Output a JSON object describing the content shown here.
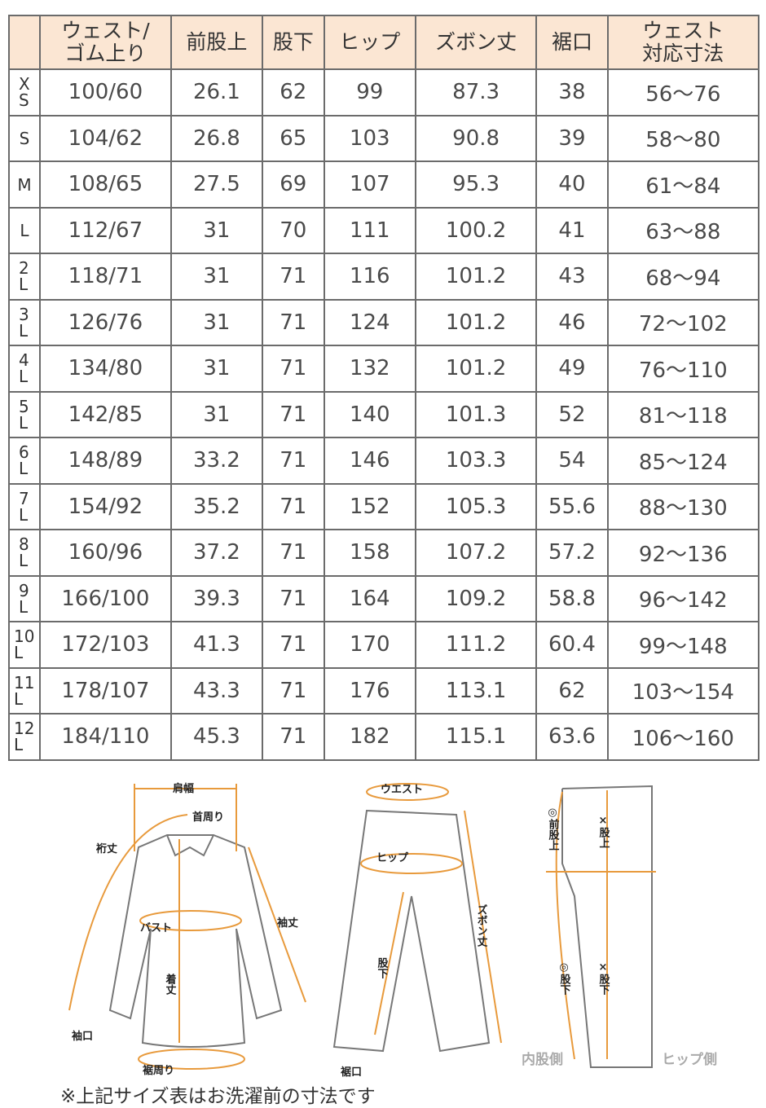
{
  "table": {
    "headers": [
      "",
      "ウェスト/\nゴム上り",
      "前股上",
      "股下",
      "ヒップ",
      "ズボン丈",
      "裾口",
      "ウェスト\n対応寸法"
    ],
    "rows": [
      [
        "XS",
        "100/60",
        "26.1",
        "62",
        "99",
        "87.3",
        "38",
        "56～76"
      ],
      [
        "S",
        "104/62",
        "26.8",
        "65",
        "103",
        "90.8",
        "39",
        "58～80"
      ],
      [
        "M",
        "108/65",
        "27.5",
        "69",
        "107",
        "95.3",
        "40",
        "61～84"
      ],
      [
        "L",
        "112/67",
        "31",
        "70",
        "111",
        "100.2",
        "41",
        "63～88"
      ],
      [
        "2L",
        "118/71",
        "31",
        "71",
        "116",
        "101.2",
        "43",
        "68～94"
      ],
      [
        "3L",
        "126/76",
        "31",
        "71",
        "124",
        "101.2",
        "46",
        "72～102"
      ],
      [
        "4L",
        "134/80",
        "31",
        "71",
        "132",
        "101.2",
        "49",
        "76～110"
      ],
      [
        "5L",
        "142/85",
        "31",
        "71",
        "140",
        "101.3",
        "52",
        "81～118"
      ],
      [
        "6L",
        "148/89",
        "33.2",
        "71",
        "146",
        "103.3",
        "54",
        "85～124"
      ],
      [
        "7L",
        "154/92",
        "35.2",
        "71",
        "152",
        "105.3",
        "55.6",
        "88～130"
      ],
      [
        "8L",
        "160/96",
        "37.2",
        "71",
        "158",
        "107.2",
        "57.2",
        "92～136"
      ],
      [
        "9L",
        "166/100",
        "39.3",
        "71",
        "164",
        "109.2",
        "58.8",
        "96～142"
      ],
      [
        "10L",
        "172/103",
        "41.3",
        "71",
        "170",
        "111.2",
        "60.4",
        "99～148"
      ],
      [
        "11L",
        "178/107",
        "43.3",
        "71",
        "176",
        "113.1",
        "62",
        "103～154"
      ],
      [
        "12L",
        "184/110",
        "45.3",
        "71",
        "182",
        "115.1",
        "63.6",
        "106～160"
      ]
    ]
  },
  "diagram": {
    "shirt": {
      "shoulder": "肩幅",
      "neck": "首周り",
      "yuki": "裄丈",
      "bust": "バスト",
      "sleeve": "袖丈",
      "length": "着丈",
      "cuff": "袖口",
      "hem": "裾周り"
    },
    "pants": {
      "waist": "ウエスト",
      "hip": "ヒップ",
      "inseam": "股下",
      "length": "ズボン丈",
      "hem": "裾口"
    },
    "side": {
      "front_rise": "◎前股上",
      "rise": "×股上",
      "inseam_o": "◎股下",
      "inseam_x": "×股下",
      "inner": "内股側",
      "hip_side": "ヒップ側"
    },
    "accent": "#e89a3c"
  },
  "note": "※上記サイズ表はお洗濯前の寸法です"
}
